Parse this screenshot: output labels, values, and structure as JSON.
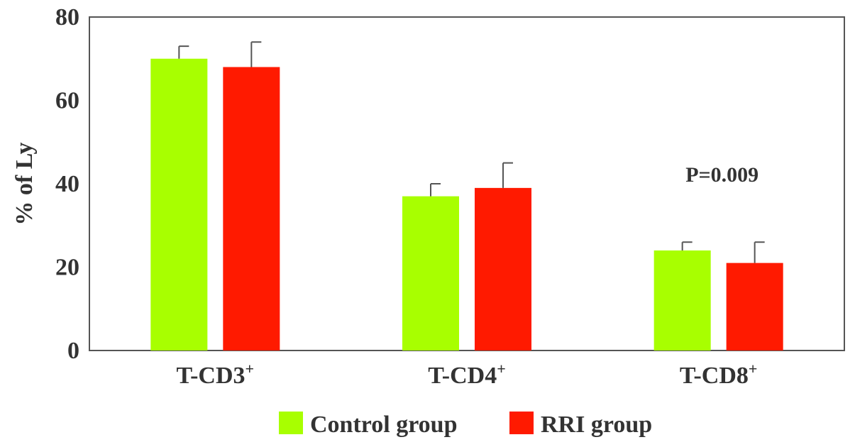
{
  "chart_data": {
    "type": "bar",
    "categories": [
      {
        "label": "T-CD3",
        "sup": "+"
      },
      {
        "label": "T-CD4",
        "sup": "+"
      },
      {
        "label": "T-CD8",
        "sup": "+"
      }
    ],
    "series": [
      {
        "name": "Control group",
        "color": "#a8ff00",
        "values": [
          70,
          37,
          24
        ],
        "errors": [
          3,
          3,
          2
        ]
      },
      {
        "name": "RRI group",
        "color": "#ff1a00",
        "values": [
          68,
          39,
          21
        ],
        "errors": [
          6,
          6,
          5
        ]
      }
    ],
    "ylabel": "% of Ly",
    "ylim": [
      0,
      80
    ],
    "yticks": [
      "0",
      "20",
      "40",
      "60",
      "80"
    ],
    "annotations": [
      {
        "text": "P=0.009",
        "category_index": 2
      }
    ],
    "legend_position": "bottom-center",
    "grid": false
  }
}
